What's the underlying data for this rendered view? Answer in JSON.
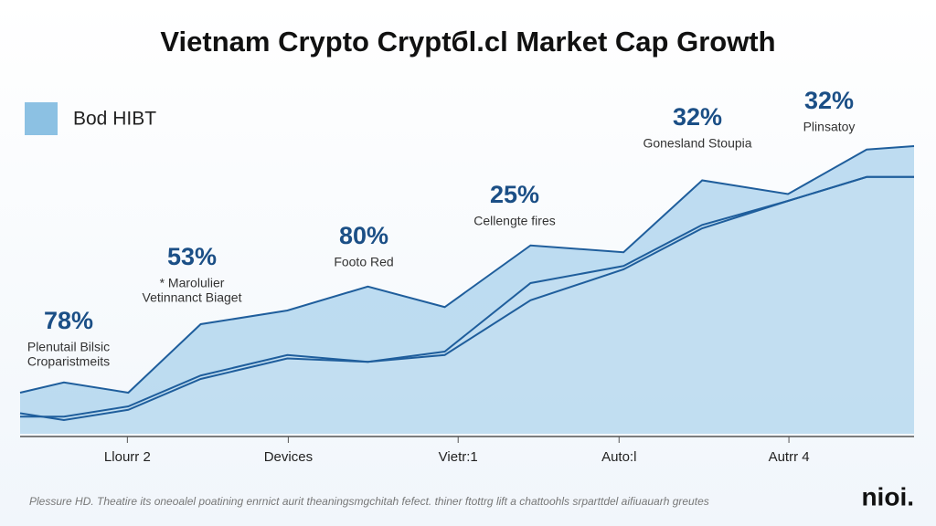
{
  "chart_data": {
    "type": "area",
    "title": "Vietnam Crypto Cryptбl.cl Market Cap Growth",
    "legend": {
      "label": "Bod HIBT",
      "color": "#8cc1e3",
      "position": "upper left"
    },
    "x": [
      0,
      4.9,
      12.1,
      20.2,
      29.9,
      38.9,
      47.5,
      57.1,
      67.5,
      76.3,
      85.9,
      94.7,
      100
    ],
    "xlim": [
      0,
      100
    ],
    "xticks": [
      {
        "value": 12,
        "label": "Llourr 2"
      },
      {
        "value": 30,
        "label": "Devices"
      },
      {
        "value": 49,
        "label": "Vietr:1"
      },
      {
        "value": 67,
        "label": "Auto:l"
      },
      {
        "value": 86,
        "label": "Autrr 4"
      }
    ],
    "ylim": [
      0,
      100
    ],
    "series": [
      {
        "name": "Bod HIBT",
        "color": "#1f5e9c",
        "fill": "#a9d1ec",
        "values": [
          12,
          15,
          12,
          32,
          36,
          43,
          37,
          55,
          53,
          74,
          70,
          83,
          84
        ]
      },
      {
        "color": "#1f5e9c",
        "fill": "#c5e0f2",
        "values": [
          5,
          5,
          8,
          17,
          23,
          21,
          24,
          44,
          49,
          61,
          68,
          75,
          75
        ]
      },
      {
        "color": "#1f5e9c",
        "values": [
          6,
          4,
          7,
          16,
          22,
          21,
          23,
          39,
          48,
          60,
          68,
          75,
          75
        ]
      }
    ],
    "annotations": [
      {
        "value": "78%",
        "lines": [
          "Plenutail Bilsic",
          "Croparistmeits"
        ]
      },
      {
        "value": "53%",
        "lines": [
          "* Marolulier",
          "Vetinnanct Biaget"
        ]
      },
      {
        "value": "80%",
        "lines": [
          "Footo Red"
        ]
      },
      {
        "value": "25%",
        "lines": [
          "Cellengte fires"
        ]
      },
      {
        "value": "32%",
        "lines": [
          "Gonesland Stoupia"
        ]
      },
      {
        "value": "32%",
        "lines": [
          "Plinsatoy"
        ]
      }
    ],
    "footnote": "Plessure HD. Theatire its oneoalel poatining enrnict aurit theaningsmgchitah fefect. thiner ftottrg lift a chattoohls srparttdel aifiuauarh greutes",
    "logo": "nioi."
  }
}
